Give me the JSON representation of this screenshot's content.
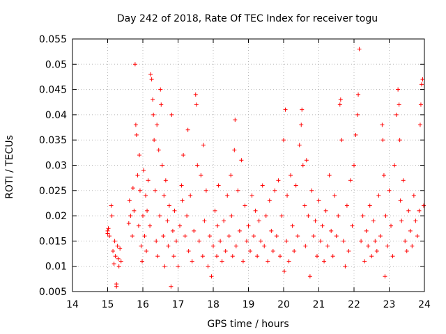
{
  "chart_data": {
    "type": "scatter",
    "title": "Day 242 of 2018, Rate Of TEC Index for receiver togu",
    "xlabel": "GPS time / hours",
    "ylabel": "ROTI / TECUs",
    "xlim": [
      14,
      24
    ],
    "ylim": [
      0.005,
      0.055
    ],
    "x_ticks": [
      "14",
      "15",
      "16",
      "17",
      "18",
      "19",
      "20",
      "21",
      "22",
      "23",
      "24"
    ],
    "y_ticks": [
      "0.005",
      "0.01",
      "0.015",
      "0.02",
      "0.025",
      "0.03",
      "0.035",
      "0.04",
      "0.045",
      "0.05",
      "0.055"
    ],
    "grid": true,
    "marker": "plus",
    "series_color": "#ff0000",
    "points": [
      [
        15.0,
        0.017
      ],
      [
        15.0,
        0.0165
      ],
      [
        15.02,
        0.0175
      ],
      [
        15.05,
        0.016
      ],
      [
        15.1,
        0.022
      ],
      [
        15.12,
        0.02
      ],
      [
        15.15,
        0.013
      ],
      [
        15.18,
        0.0105
      ],
      [
        15.2,
        0.015
      ],
      [
        15.22,
        0.012
      ],
      [
        15.25,
        0.0065
      ],
      [
        15.25,
        0.006
      ],
      [
        15.28,
        0.014
      ],
      [
        15.3,
        0.0115
      ],
      [
        15.32,
        0.01
      ],
      [
        15.35,
        0.0135
      ],
      [
        15.38,
        0.011
      ],
      [
        15.6,
        0.0185
      ],
      [
        15.62,
        0.023
      ],
      [
        15.65,
        0.02
      ],
      [
        15.7,
        0.016
      ],
      [
        15.72,
        0.0255
      ],
      [
        15.75,
        0.021
      ],
      [
        15.78,
        0.05
      ],
      [
        15.8,
        0.038
      ],
      [
        15.82,
        0.036
      ],
      [
        15.85,
        0.028
      ],
      [
        15.88,
        0.018
      ],
      [
        15.9,
        0.032
      ],
      [
        15.92,
        0.025
      ],
      [
        15.95,
        0.014
      ],
      [
        15.98,
        0.011
      ],
      [
        16.0,
        0.02
      ],
      [
        16.02,
        0.029
      ],
      [
        16.05,
        0.016
      ],
      [
        16.08,
        0.024
      ],
      [
        16.1,
        0.013
      ],
      [
        16.12,
        0.021
      ],
      [
        16.15,
        0.027
      ],
      [
        16.2,
        0.018
      ],
      [
        16.22,
        0.048
      ],
      [
        16.25,
        0.047
      ],
      [
        16.28,
        0.043
      ],
      [
        16.3,
        0.04
      ],
      [
        16.32,
        0.035
      ],
      [
        16.35,
        0.025
      ],
      [
        16.38,
        0.015
      ],
      [
        16.4,
        0.038
      ],
      [
        16.42,
        0.012
      ],
      [
        16.45,
        0.033
      ],
      [
        16.48,
        0.02
      ],
      [
        16.5,
        0.045
      ],
      [
        16.52,
        0.042
      ],
      [
        16.55,
        0.03
      ],
      [
        16.58,
        0.016
      ],
      [
        16.6,
        0.024
      ],
      [
        16.62,
        0.01
      ],
      [
        16.65,
        0.027
      ],
      [
        16.7,
        0.019
      ],
      [
        16.72,
        0.014
      ],
      [
        16.75,
        0.022
      ],
      [
        16.8,
        0.006
      ],
      [
        16.82,
        0.04
      ],
      [
        16.85,
        0.017
      ],
      [
        16.88,
        0.012
      ],
      [
        16.9,
        0.021
      ],
      [
        16.95,
        0.015
      ],
      [
        17.0,
        0.01
      ],
      [
        17.05,
        0.018
      ],
      [
        17.1,
        0.026
      ],
      [
        17.12,
        0.023
      ],
      [
        17.15,
        0.032
      ],
      [
        17.2,
        0.016
      ],
      [
        17.25,
        0.02
      ],
      [
        17.28,
        0.037
      ],
      [
        17.3,
        0.013
      ],
      [
        17.35,
        0.024
      ],
      [
        17.4,
        0.011
      ],
      [
        17.45,
        0.017
      ],
      [
        17.5,
        0.044
      ],
      [
        17.52,
        0.042
      ],
      [
        17.55,
        0.03
      ],
      [
        17.6,
        0.015
      ],
      [
        17.65,
        0.028
      ],
      [
        17.7,
        0.012
      ],
      [
        17.72,
        0.034
      ],
      [
        17.75,
        0.019
      ],
      [
        17.8,
        0.025
      ],
      [
        17.85,
        0.01
      ],
      [
        17.9,
        0.016
      ],
      [
        17.95,
        0.008
      ],
      [
        18.0,
        0.014
      ],
      [
        18.05,
        0.021
      ],
      [
        18.1,
        0.012
      ],
      [
        18.12,
        0.018
      ],
      [
        18.15,
        0.026
      ],
      [
        18.2,
        0.015
      ],
      [
        18.25,
        0.011
      ],
      [
        18.3,
        0.019
      ],
      [
        18.35,
        0.013
      ],
      [
        18.4,
        0.024
      ],
      [
        18.45,
        0.016
      ],
      [
        18.5,
        0.028
      ],
      [
        18.52,
        0.02
      ],
      [
        18.55,
        0.012
      ],
      [
        18.6,
        0.033
      ],
      [
        18.62,
        0.039
      ],
      [
        18.65,
        0.014
      ],
      [
        18.7,
        0.025
      ],
      [
        18.75,
        0.017
      ],
      [
        18.8,
        0.031
      ],
      [
        18.85,
        0.011
      ],
      [
        18.9,
        0.022
      ],
      [
        18.95,
        0.015
      ],
      [
        19.0,
        0.018
      ],
      [
        19.05,
        0.013
      ],
      [
        19.1,
        0.024
      ],
      [
        19.15,
        0.016
      ],
      [
        19.2,
        0.021
      ],
      [
        19.25,
        0.012
      ],
      [
        19.3,
        0.019
      ],
      [
        19.35,
        0.015
      ],
      [
        19.4,
        0.026
      ],
      [
        19.45,
        0.014
      ],
      [
        19.5,
        0.02
      ],
      [
        19.55,
        0.011
      ],
      [
        19.6,
        0.023
      ],
      [
        19.65,
        0.017
      ],
      [
        19.7,
        0.013
      ],
      [
        19.75,
        0.025
      ],
      [
        19.8,
        0.016
      ],
      [
        19.85,
        0.027
      ],
      [
        19.9,
        0.012
      ],
      [
        19.95,
        0.02
      ],
      [
        20.0,
        0.035
      ],
      [
        20.02,
        0.009
      ],
      [
        20.05,
        0.041
      ],
      [
        20.08,
        0.015
      ],
      [
        20.1,
        0.024
      ],
      [
        20.15,
        0.011
      ],
      [
        20.2,
        0.028
      ],
      [
        20.25,
        0.018
      ],
      [
        20.3,
        0.013
      ],
      [
        20.35,
        0.026
      ],
      [
        20.4,
        0.016
      ],
      [
        20.45,
        0.034
      ],
      [
        20.5,
        0.038
      ],
      [
        20.52,
        0.041
      ],
      [
        20.55,
        0.03
      ],
      [
        20.6,
        0.022
      ],
      [
        20.62,
        0.014
      ],
      [
        20.65,
        0.031
      ],
      [
        20.7,
        0.02
      ],
      [
        20.75,
        0.008
      ],
      [
        20.8,
        0.025
      ],
      [
        20.85,
        0.016
      ],
      [
        20.9,
        0.019
      ],
      [
        20.95,
        0.012
      ],
      [
        21.0,
        0.023
      ],
      [
        21.05,
        0.015
      ],
      [
        21.1,
        0.018
      ],
      [
        21.15,
        0.011
      ],
      [
        21.2,
        0.021
      ],
      [
        21.25,
        0.014
      ],
      [
        21.3,
        0.028
      ],
      [
        21.35,
        0.017
      ],
      [
        21.4,
        0.012
      ],
      [
        21.45,
        0.024
      ],
      [
        21.5,
        0.016
      ],
      [
        21.55,
        0.02
      ],
      [
        21.6,
        0.042
      ],
      [
        21.62,
        0.043
      ],
      [
        21.65,
        0.035
      ],
      [
        21.7,
        0.015
      ],
      [
        21.75,
        0.01
      ],
      [
        21.8,
        0.022
      ],
      [
        21.85,
        0.013
      ],
      [
        21.9,
        0.027
      ],
      [
        21.95,
        0.018
      ],
      [
        22.0,
        0.03
      ],
      [
        22.05,
        0.036
      ],
      [
        22.1,
        0.04
      ],
      [
        22.12,
        0.044
      ],
      [
        22.15,
        0.053
      ],
      [
        22.2,
        0.015
      ],
      [
        22.25,
        0.02
      ],
      [
        22.3,
        0.011
      ],
      [
        22.35,
        0.017
      ],
      [
        22.4,
        0.014
      ],
      [
        22.45,
        0.022
      ],
      [
        22.5,
        0.012
      ],
      [
        22.55,
        0.019
      ],
      [
        22.6,
        0.015
      ],
      [
        22.65,
        0.013
      ],
      [
        22.7,
        0.024
      ],
      [
        22.75,
        0.016
      ],
      [
        22.8,
        0.038
      ],
      [
        22.82,
        0.035
      ],
      [
        22.85,
        0.028
      ],
      [
        22.88,
        0.008
      ],
      [
        22.9,
        0.02
      ],
      [
        22.95,
        0.014
      ],
      [
        23.0,
        0.025
      ],
      [
        23.05,
        0.018
      ],
      [
        23.1,
        0.012
      ],
      [
        23.15,
        0.03
      ],
      [
        23.2,
        0.04
      ],
      [
        23.25,
        0.045
      ],
      [
        23.28,
        0.042
      ],
      [
        23.3,
        0.035
      ],
      [
        23.32,
        0.023
      ],
      [
        23.35,
        0.019
      ],
      [
        23.4,
        0.027
      ],
      [
        23.45,
        0.015
      ],
      [
        23.5,
        0.013
      ],
      [
        23.55,
        0.021
      ],
      [
        23.6,
        0.017
      ],
      [
        23.65,
        0.014
      ],
      [
        23.7,
        0.024
      ],
      [
        23.75,
        0.019
      ],
      [
        23.8,
        0.016
      ],
      [
        23.85,
        0.021
      ],
      [
        23.88,
        0.038
      ],
      [
        23.9,
        0.042
      ],
      [
        23.92,
        0.046
      ],
      [
        23.95,
        0.047
      ],
      [
        23.98,
        0.022
      ]
    ]
  }
}
